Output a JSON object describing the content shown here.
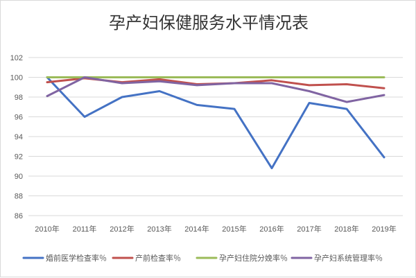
{
  "chart_data": {
    "type": "line",
    "title": "孕产妇保健服务水平情况表",
    "categories": [
      "2010年",
      "2011年",
      "2012年",
      "2013年",
      "2014年",
      "2015年",
      "2016年",
      "2017年",
      "2018年",
      "2019年"
    ],
    "y_ticks": [
      "86",
      "88",
      "90",
      "92",
      "94",
      "96",
      "98",
      "100",
      "102"
    ],
    "ylim": [
      86,
      102
    ],
    "grid": true,
    "legend_position": "bottom",
    "series": [
      {
        "name": "婚前医学检查率％",
        "color": "#4472c4",
        "values": [
          100.0,
          96.0,
          98.0,
          98.6,
          97.2,
          96.8,
          90.8,
          97.4,
          96.8,
          91.9
        ]
      },
      {
        "name": "产前检查率％",
        "color": "#c0504d",
        "values": [
          99.5,
          99.9,
          99.5,
          99.8,
          99.3,
          99.4,
          99.7,
          99.2,
          99.3,
          98.9
        ]
      },
      {
        "name": "孕产妇住院分娩率％",
        "color": "#9bbb59",
        "values": [
          100.0,
          100.0,
          100.0,
          100.0,
          100.0,
          100.0,
          100.0,
          100.0,
          100.0,
          100.0
        ]
      },
      {
        "name": "孕产妇系统管理率％",
        "color": "#8064a2",
        "values": [
          98.1,
          100.0,
          99.4,
          99.6,
          99.2,
          99.4,
          99.4,
          98.6,
          97.5,
          98.2
        ]
      }
    ]
  }
}
